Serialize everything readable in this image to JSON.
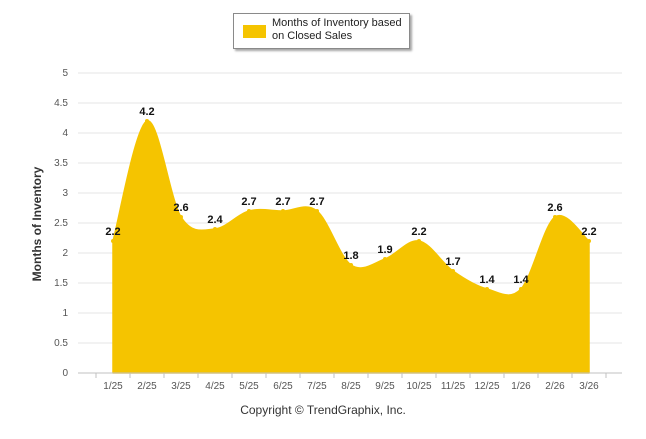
{
  "chart_data": {
    "type": "area",
    "title": "",
    "xlabel": "",
    "ylabel": "Months of Inventory",
    "ylim": [
      0,
      5
    ],
    "yticks": [
      "0",
      "0.5",
      "1",
      "1.5",
      "2",
      "2.5",
      "3",
      "3.5",
      "4",
      "4.5",
      "5"
    ],
    "grid": true,
    "legend_position": "top-center",
    "categories": [
      "1/25",
      "2/25",
      "3/25",
      "4/25",
      "5/25",
      "6/25",
      "7/25",
      "8/25",
      "9/25",
      "10/25",
      "11/25",
      "12/25",
      "1/26",
      "2/26",
      "3/26"
    ],
    "series": [
      {
        "name": "Months of Inventory based on Closed Sales",
        "color": "#f5c400",
        "values": [
          2.2,
          4.2,
          2.6,
          2.4,
          2.7,
          2.7,
          2.7,
          1.8,
          1.9,
          2.2,
          1.7,
          1.4,
          1.4,
          2.6,
          2.2
        ],
        "labels": [
          "2.2",
          "4.2",
          "2.6",
          "2.4",
          "2.7",
          "2.7",
          "2.7",
          "1.8",
          "1.9",
          "2.2",
          "1.7",
          "1.4",
          "1.4",
          "2.6",
          "2.2"
        ]
      }
    ]
  },
  "legend": {
    "label": "Months of Inventory based on Closed Sales"
  },
  "footer": {
    "copyright": "Copyright © TrendGraphix, Inc."
  }
}
